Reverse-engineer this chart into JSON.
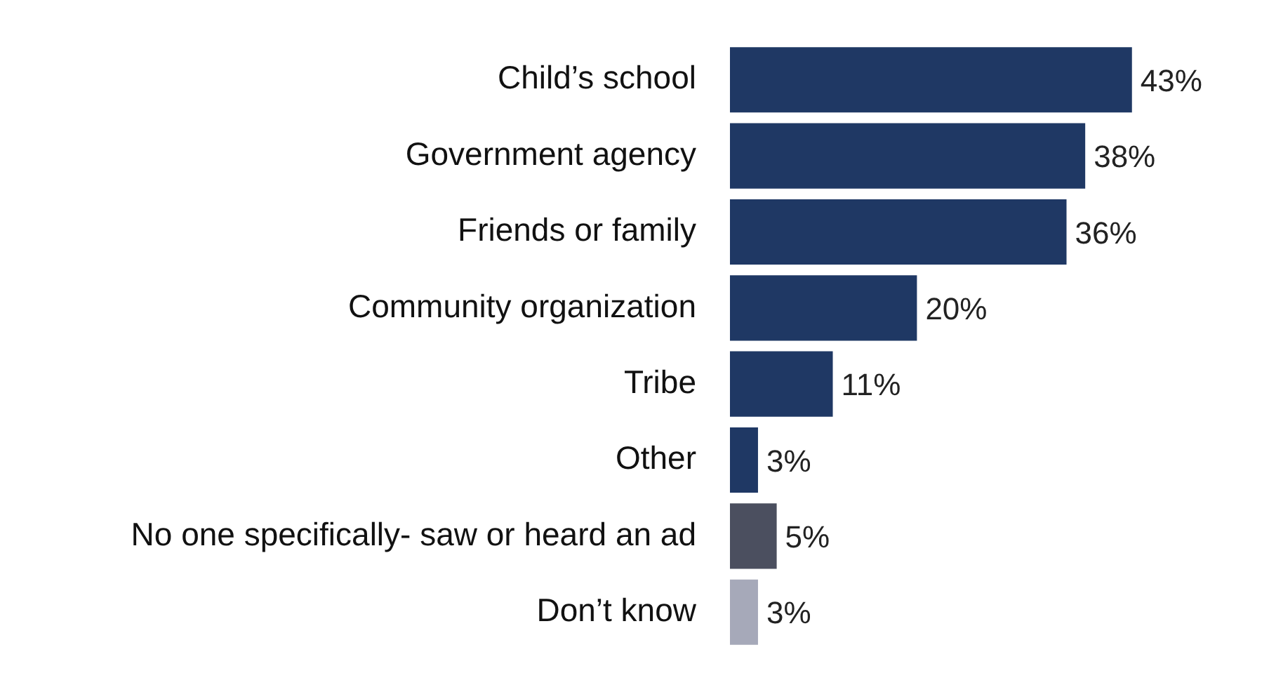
{
  "chart_data": {
    "type": "bar",
    "orientation": "horizontal",
    "categories": [
      "Child’s school",
      "Government agency",
      "Friends or family",
      "Community organization",
      "Tribe",
      "Other",
      "No one specifically- saw or heard an ad",
      "Don’t know"
    ],
    "values": [
      43,
      38,
      36,
      20,
      11,
      3,
      5,
      3
    ],
    "colors": [
      "#1f3864",
      "#1f3864",
      "#1f3864",
      "#1f3864",
      "#1f3864",
      "#1f3864",
      "#4b4f5f",
      "#a6a9b9"
    ],
    "value_labels": [
      "43%",
      "38%",
      "36%",
      "20%",
      "11%",
      "3%",
      "5%",
      "3%"
    ],
    "tick_labels": "y",
    "legend": false
  }
}
